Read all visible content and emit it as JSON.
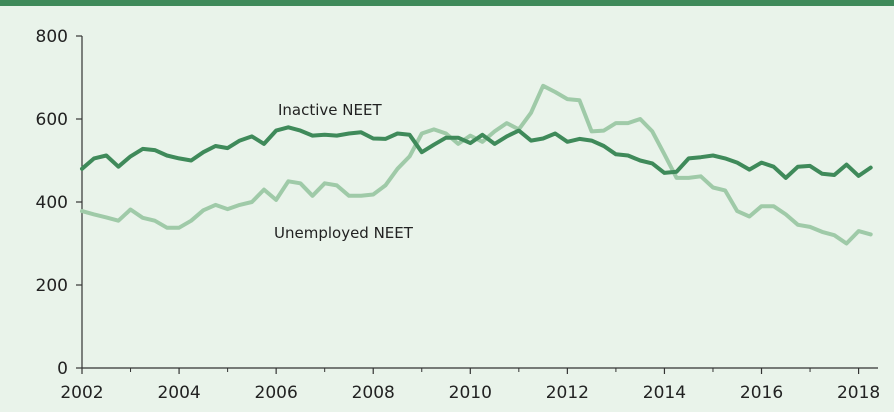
{
  "chart_data": {
    "type": "line",
    "title": "",
    "xlabel": "",
    "ylabel": "",
    "xlim": [
      2002,
      2018.4
    ],
    "ylim": [
      0,
      800
    ],
    "x_ticks": [
      "2002",
      "2004",
      "2006",
      "2008",
      "2010",
      "2012",
      "2014",
      "2016",
      "2018"
    ],
    "y_ticks": [
      "0",
      "200",
      "400",
      "600",
      "800"
    ],
    "grid": false,
    "legend": "none",
    "annotations": [
      {
        "text": "Inactive NEET",
        "series": "Inactive NEET"
      },
      {
        "text": "Unemployed NEET",
        "series": "Unemployed NEET"
      }
    ],
    "series": [
      {
        "name": "Inactive NEET",
        "color": "#3f8a5a",
        "x": [
          2002.0,
          2002.25,
          2002.5,
          2002.75,
          2003.0,
          2003.25,
          2003.5,
          2003.75,
          2004.0,
          2004.25,
          2004.5,
          2004.75,
          2005.0,
          2005.25,
          2005.5,
          2005.75,
          2006.0,
          2006.25,
          2006.5,
          2006.75,
          2007.0,
          2007.25,
          2007.5,
          2007.75,
          2008.0,
          2008.25,
          2008.5,
          2008.75,
          2009.0,
          2009.25,
          2009.5,
          2009.75,
          2010.0,
          2010.25,
          2010.5,
          2010.75,
          2011.0,
          2011.25,
          2011.5,
          2011.75,
          2012.0,
          2012.25,
          2012.5,
          2012.75,
          2013.0,
          2013.25,
          2013.5,
          2013.75,
          2014.0,
          2014.25,
          2014.5,
          2014.75,
          2015.0,
          2015.25,
          2015.5,
          2015.75,
          2016.0,
          2016.25,
          2016.5,
          2016.75,
          2017.0,
          2017.25,
          2017.5,
          2017.75,
          2018.0,
          2018.25
        ],
        "values": [
          480,
          505,
          512,
          485,
          510,
          528,
          525,
          512,
          505,
          500,
          520,
          535,
          530,
          548,
          558,
          540,
          572,
          580,
          572,
          560,
          562,
          560,
          565,
          568,
          553,
          552,
          565,
          562,
          520,
          538,
          555,
          555,
          542,
          562,
          540,
          558,
          572,
          548,
          553,
          565,
          545,
          552,
          548,
          535,
          515,
          512,
          500,
          493,
          470,
          473,
          505,
          508,
          512,
          505,
          495,
          478,
          495,
          485,
          458,
          485,
          487,
          468,
          465,
          490,
          463,
          483
        ]
      },
      {
        "name": "Unemployed NEET",
        "color": "#9fcaa8",
        "x": [
          2002.0,
          2002.25,
          2002.5,
          2002.75,
          2003.0,
          2003.25,
          2003.5,
          2003.75,
          2004.0,
          2004.25,
          2004.5,
          2004.75,
          2005.0,
          2005.25,
          2005.5,
          2005.75,
          2006.0,
          2006.25,
          2006.5,
          2006.75,
          2007.0,
          2007.25,
          2007.5,
          2007.75,
          2008.0,
          2008.25,
          2008.5,
          2008.75,
          2009.0,
          2009.25,
          2009.5,
          2009.75,
          2010.0,
          2010.25,
          2010.5,
          2010.75,
          2011.0,
          2011.25,
          2011.5,
          2011.75,
          2012.0,
          2012.25,
          2012.5,
          2012.75,
          2013.0,
          2013.25,
          2013.5,
          2013.75,
          2014.0,
          2014.25,
          2014.5,
          2014.75,
          2015.0,
          2015.25,
          2015.5,
          2015.75,
          2016.0,
          2016.25,
          2016.5,
          2016.75,
          2017.0,
          2017.25,
          2017.5,
          2017.75,
          2018.0,
          2018.25
        ],
        "values": [
          378,
          370,
          363,
          355,
          382,
          362,
          355,
          338,
          338,
          355,
          380,
          393,
          383,
          393,
          400,
          430,
          405,
          450,
          445,
          415,
          445,
          440,
          415,
          415,
          418,
          440,
          480,
          510,
          565,
          575,
          565,
          540,
          560,
          545,
          570,
          590,
          575,
          615,
          680,
          665,
          648,
          645,
          570,
          572,
          590,
          590,
          600,
          570,
          515,
          458,
          458,
          462,
          435,
          428,
          378,
          365,
          390,
          390,
          370,
          345,
          340,
          328,
          320,
          300,
          330,
          322
        ]
      }
    ]
  }
}
